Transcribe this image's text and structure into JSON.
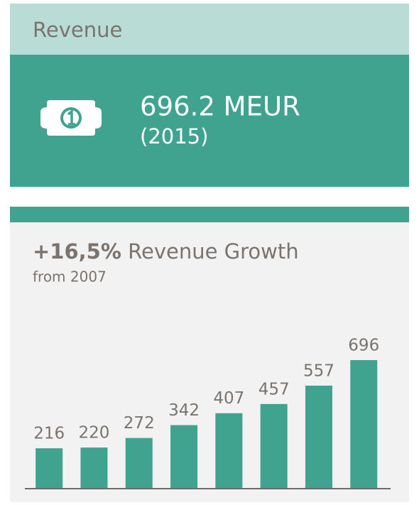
{
  "revenue_card": {
    "title": "Revenue",
    "amount": "696.2 MEUR",
    "year": "(2015)"
  },
  "chart_data": {
    "type": "bar",
    "highlight": "+16,5%",
    "title": "Revenue Growth",
    "subtitle": "from 2007",
    "values": [
      216,
      220,
      272,
      342,
      407,
      457,
      557,
      696
    ],
    "color": "#40a38f"
  }
}
